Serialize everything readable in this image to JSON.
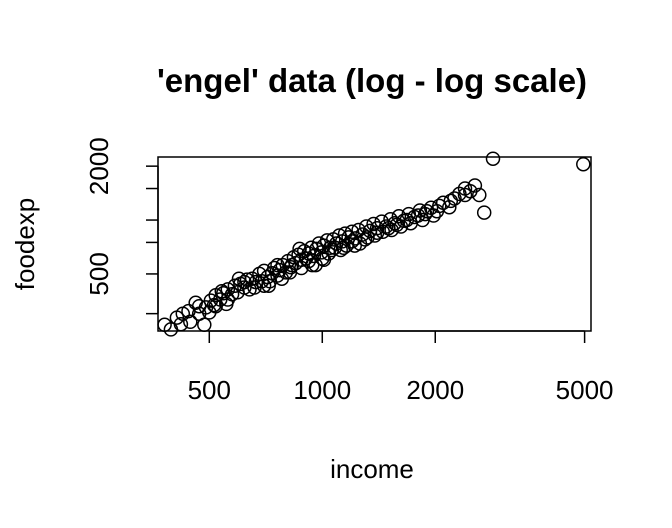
{
  "chart_data": {
    "type": "scatter",
    "title": "'engel' data (log - log scale)",
    "xlabel": "income",
    "ylabel": "foodexp",
    "x_scale": "log",
    "y_scale": "log",
    "xlim": [
      365,
      5200
    ],
    "ylim": [
      240,
      2250
    ],
    "x_ticks": [
      500,
      1000,
      2000,
      5000
    ],
    "x_tick_labels": [
      "500",
      "1000",
      "2000",
      "5000"
    ],
    "y_ticks": [
      300,
      500,
      750,
      1000,
      1500,
      2000
    ],
    "y_tick_labels": [
      "",
      "500",
      "",
      "",
      "",
      "2000"
    ],
    "marker": "open-circle",
    "grid": false,
    "points": [
      [
        380,
        260
      ],
      [
        395,
        245
      ],
      [
        410,
        285
      ],
      [
        420,
        262
      ],
      [
        425,
        300
      ],
      [
        440,
        310
      ],
      [
        445,
        270
      ],
      [
        460,
        345
      ],
      [
        470,
        300
      ],
      [
        485,
        260
      ],
      [
        490,
        325
      ],
      [
        500,
        305
      ],
      [
        505,
        355
      ],
      [
        515,
        335
      ],
      [
        520,
        380
      ],
      [
        535,
        360
      ],
      [
        545,
        390
      ],
      [
        555,
        340
      ],
      [
        560,
        410
      ],
      [
        575,
        385
      ],
      [
        585,
        430
      ],
      [
        595,
        395
      ],
      [
        605,
        440
      ],
      [
        620,
        420
      ],
      [
        630,
        465
      ],
      [
        640,
        410
      ],
      [
        650,
        470
      ],
      [
        665,
        450
      ],
      [
        680,
        500
      ],
      [
        690,
        455
      ],
      [
        700,
        520
      ],
      [
        715,
        480
      ],
      [
        725,
        455
      ],
      [
        735,
        505
      ],
      [
        745,
        540
      ],
      [
        760,
        490
      ],
      [
        770,
        525
      ],
      [
        785,
        560
      ],
      [
        800,
        510
      ],
      [
        810,
        590
      ],
      [
        825,
        545
      ],
      [
        840,
        620
      ],
      [
        850,
        575
      ],
      [
        865,
        640
      ],
      [
        880,
        600
      ],
      [
        895,
        670
      ],
      [
        905,
        610
      ],
      [
        920,
        650
      ],
      [
        935,
        700
      ],
      [
        950,
        630
      ],
      [
        965,
        690
      ],
      [
        980,
        740
      ],
      [
        995,
        660
      ],
      [
        1010,
        720
      ],
      [
        1030,
        770
      ],
      [
        1050,
        700
      ],
      [
        1070,
        780
      ],
      [
        1090,
        740
      ],
      [
        1110,
        820
      ],
      [
        1130,
        760
      ],
      [
        1150,
        840
      ],
      [
        1175,
        800
      ],
      [
        1200,
        860
      ],
      [
        1225,
        790
      ],
      [
        1250,
        880
      ],
      [
        1280,
        830
      ],
      [
        1310,
        920
      ],
      [
        1340,
        870
      ],
      [
        1370,
        950
      ],
      [
        1400,
        900
      ],
      [
        1440,
        980
      ],
      [
        1480,
        920
      ],
      [
        1520,
        1010
      ],
      [
        1560,
        960
      ],
      [
        1600,
        1050
      ],
      [
        1650,
        990
      ],
      [
        1700,
        1080
      ],
      [
        1760,
        1040
      ],
      [
        1820,
        1130
      ],
      [
        1880,
        1080
      ],
      [
        1950,
        1170
      ],
      [
        2020,
        1120
      ],
      [
        2100,
        1250
      ],
      [
        2180,
        1180
      ],
      [
        2250,
        1320
      ],
      [
        2320,
        1400
      ],
      [
        2400,
        1500
      ],
      [
        2480,
        1450
      ],
      [
        2550,
        1560
      ],
      [
        2620,
        1380
      ],
      [
        2700,
        1100
      ],
      [
        2850,
        2200
      ],
      [
        4960,
        2050
      ],
      [
        520,
        330
      ],
      [
        560,
        360
      ],
      [
        600,
        470
      ],
      [
        660,
        420
      ],
      [
        720,
        430
      ],
      [
        780,
        470
      ],
      [
        830,
        560
      ],
      [
        870,
        690
      ],
      [
        920,
        590
      ],
      [
        960,
        560
      ],
      [
        1000,
        610
      ],
      [
        1040,
        650
      ],
      [
        1080,
        700
      ],
      [
        1120,
        680
      ],
      [
        1160,
        720
      ],
      [
        1200,
        760
      ],
      [
        1260,
        740
      ],
      [
        1320,
        800
      ],
      [
        1380,
        820
      ],
      [
        1450,
        860
      ],
      [
        1530,
        880
      ],
      [
        1620,
        920
      ],
      [
        1720,
        960
      ],
      [
        1850,
        1000
      ],
      [
        1980,
        1060
      ],
      [
        470,
        330
      ],
      [
        540,
        400
      ],
      [
        620,
        450
      ],
      [
        700,
        430
      ],
      [
        760,
        560
      ],
      [
        820,
        510
      ],
      [
        880,
        540
      ],
      [
        940,
        560
      ],
      [
        1010,
        600
      ],
      [
        1060,
        680
      ],
      [
        1140,
        700
      ],
      [
        1220,
        720
      ],
      [
        1300,
        780
      ],
      [
        1400,
        850
      ],
      [
        1500,
        900
      ],
      [
        1580,
        940
      ],
      [
        1680,
        1000
      ],
      [
        1800,
        1060
      ],
      [
        1900,
        1120
      ],
      [
        2050,
        1200
      ],
      [
        2200,
        1280
      ],
      [
        2400,
        1380
      ]
    ]
  }
}
